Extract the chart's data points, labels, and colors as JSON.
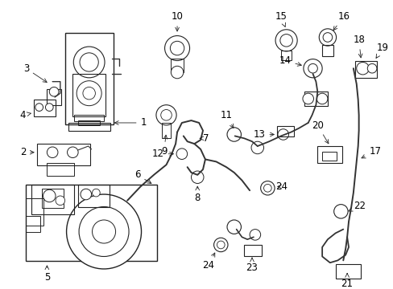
{
  "background_color": "#ffffff",
  "line_color": "#222222",
  "label_fontsize": 8.5,
  "label_color": "#000000",
  "components": {
    "labels": [
      1,
      2,
      3,
      4,
      5,
      6,
      7,
      8,
      9,
      10,
      11,
      12,
      13,
      14,
      15,
      16,
      17,
      18,
      19,
      20,
      21,
      22,
      23,
      24
    ]
  }
}
